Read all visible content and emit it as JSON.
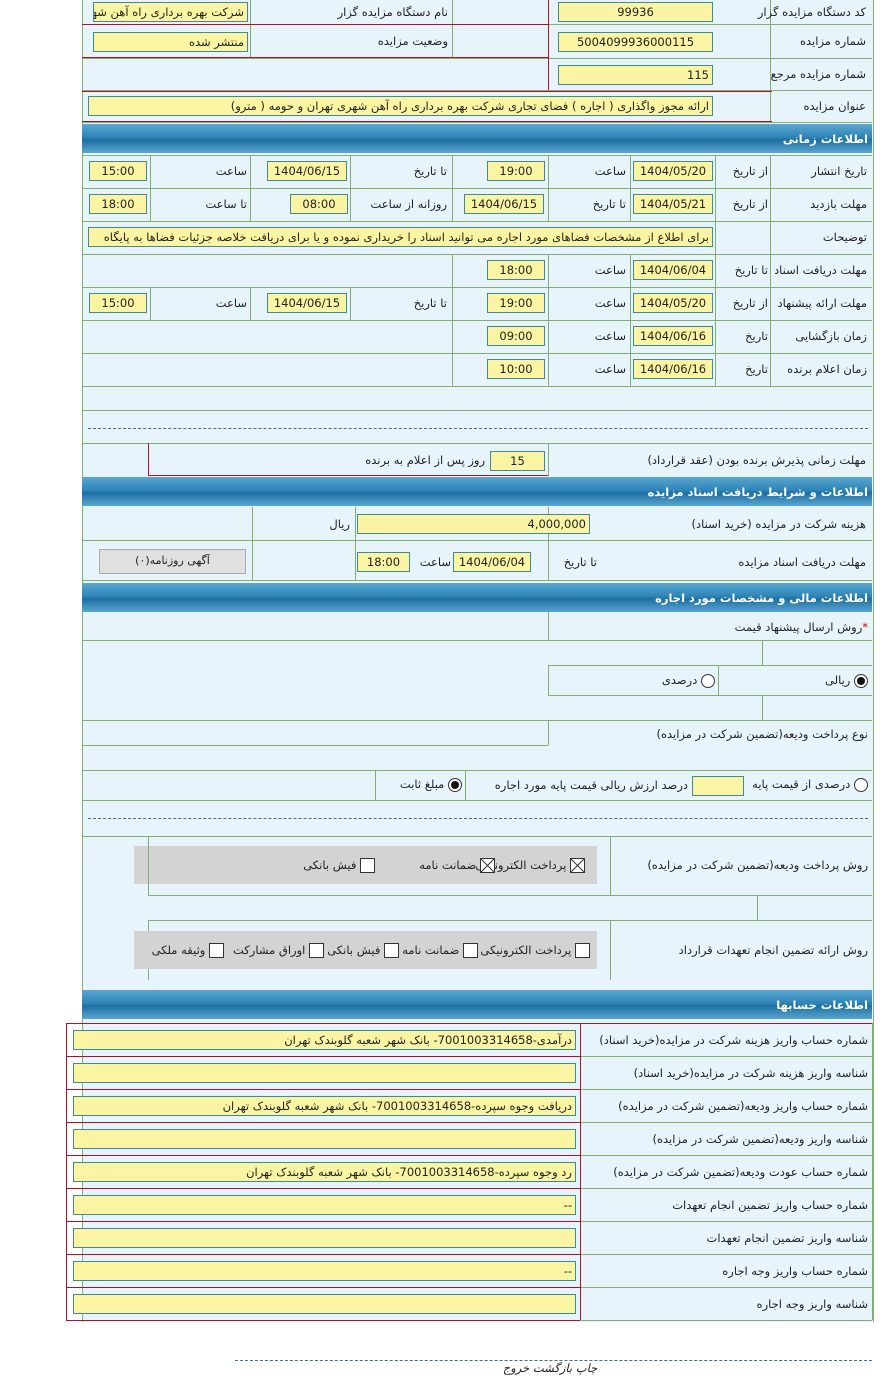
{
  "top": {
    "org_code_label": "کد دستگاه مزایده گزار",
    "org_code": "99936",
    "org_name_label": "نام دستگاه مزایده گزار",
    "org_name": "شرکت بهره برداری راه آهن شهری تهران و حومه",
    "auction_number_label": "شماره مزایده",
    "auction_number": "5004099936000115",
    "status_label": "وضعیت مزایده",
    "status": "منتشر شده",
    "ref_number_label": "شماره مزایده مرجع",
    "ref_number": "115",
    "title_label": "عنوان مزایده",
    "title": "ارائه مجوز واگذاری ( اجاره ) فضای تجاری شرکت بهره برداری راه آهن شهری تهران و حومه ( مترو)"
  },
  "time": {
    "header": "اطلاعات زمانی",
    "publish": {
      "label": "تاریخ انتشار",
      "from_label": "از تاریخ",
      "from_date": "1404/05/20",
      "time1_label": "ساعت",
      "time1": "19:00",
      "to_label": "تا تاریخ",
      "to_date": "1404/06/15",
      "time2_label": "ساعت",
      "time2": "15:00"
    },
    "visit": {
      "label": "مهلت بازدید",
      "from_label": "از تاریخ",
      "from_date": "1404/05/21",
      "to_label": "تا تاریخ",
      "to_date": "1404/06/15",
      "daily_label": "روزانه از ساعت",
      "daily_from": "08:00",
      "until_label": "تا ساعت",
      "daily_to": "18:00"
    },
    "description": {
      "label": "توضیحات",
      "value": "برای اطلاع از مشخصات فضاهای مورد اجاره می توانید اسناد را خریداری نموده و یا برای دریافت خلاصه جزئیات فضاها به پایگاه"
    },
    "docs": {
      "label": "مهلت دریافت اسناد",
      "to_label": "تا تاریخ",
      "to_date": "1404/06/04",
      "time_label": "ساعت",
      "time": "18:00"
    },
    "offer": {
      "label": "مهلت ارائه پیشنهاد",
      "from_label": "از تاریخ",
      "from_date": "1404/05/20",
      "time1_label": "ساعت",
      "time1": "19:00",
      "to_label": "تا تاریخ",
      "to_date": "1404/06/15",
      "time2_label": "ساعت",
      "time2": "15:00"
    },
    "opening": {
      "label": "زمان بازگشایی",
      "date_label": "تاریخ",
      "date": "1404/06/16",
      "time_label": "ساعت",
      "time": "09:00"
    },
    "winner": {
      "label": "زمان اعلام برنده",
      "date_label": "تاریخ",
      "date": "1404/06/16",
      "time_label": "ساعت",
      "time": "10:00"
    },
    "acceptance": {
      "label": "مهلت زمانی پذیرش برنده بودن (عقد قرارداد)",
      "days": "15",
      "suffix": "روز پس از اعلام به برنده"
    }
  },
  "docs_section": {
    "header": "اطلاعات و شرایط دریافت اسناد مزایده",
    "fee_label": "هزینه شرکت در مزایده (خرید اسناد)",
    "fee": "4,000,000",
    "currency": "ریال",
    "deadline_label": "مهلت دریافت اسناد مزایده",
    "to_label": "تا تاریخ",
    "to_date": "1404/06/04",
    "time_label": "ساعت",
    "time": "18:00",
    "newspaper_button": "آگهی روزنامه(۰)"
  },
  "finance": {
    "header": "اطلاعات مالی و مشخصات مورد اجاره",
    "required_mark": "*",
    "price_method_label": "روش ارسال پیشنهاد قیمت",
    "price_options": [
      {
        "label": "ریالی",
        "checked": true
      },
      {
        "label": "درصدی",
        "checked": false
      }
    ],
    "deposit_type_label": "نوع پرداخت ودیعه(تضمین شرکت در مزایده)",
    "percent_option": "درصدی از قیمت پایه",
    "percent_value": "",
    "percent_suffix": "درصد ارزش ریالی قیمت پایه مورد اجاره",
    "fixed_option": "مبلغ ثابت",
    "fixed_checked": true,
    "deposit_method_label": "روش پرداخت ودیعه(تضمین شرکت در مزایده)",
    "deposit_methods": [
      {
        "label": "پرداخت الکترونیکی",
        "checked": true
      },
      {
        "label": "ضمانت نامه",
        "checked": true
      },
      {
        "label": "فیش بانکی",
        "checked": false
      }
    ],
    "guarantee_label": "روش ارائه تضمین انجام تعهدات قرارداد",
    "guarantee_methods": [
      {
        "label": "پرداخت الکترونیکی",
        "checked": false
      },
      {
        "label": "ضمانت نامه",
        "checked": false
      },
      {
        "label": "فیش بانکی",
        "checked": false
      },
      {
        "label": "اوراق مشارکت",
        "checked": false
      },
      {
        "label": "وثیقه ملکی",
        "checked": false
      }
    ]
  },
  "accounts": {
    "header": "اطلاعات حسابها",
    "rows": [
      {
        "label": "شماره حساب واریز هزینه شرکت در مزایده(خرید اسناد)",
        "value": "درآمدی-7001003314658- بانک شهر شعبه گلوبندک تهران"
      },
      {
        "label": "شناسه واریز هزینه شرکت در مزایده(خرید اسناد)",
        "value": ""
      },
      {
        "label": "شماره حساب واریز ودیعه(تضمین شرکت در مزایده)",
        "value": "دریافت وجوه سپرده-7001003314658- بانک شهر شعبه گلوبندک تهران"
      },
      {
        "label": "شناسه واریز ودیعه(تضمین شرکت در مزایده)",
        "value": ""
      },
      {
        "label": "شماره حساب عودت ودیعه(تضمین شرکت در مزایده)",
        "value": "رد وجوه سپرده-7001003314658- بانک شهر شعبه گلوبندک تهران"
      },
      {
        "label": "شماره حساب واریز تضمین انجام تعهدات",
        "value": "--"
      },
      {
        "label": "شناسه واریز تضمین انجام تعهدات",
        "value": ""
      },
      {
        "label": "شماره حساب واریز وجه اجاره",
        "value": "--"
      },
      {
        "label": "شناسه واریز وجه اجاره",
        "value": ""
      }
    ]
  },
  "footer": {
    "links": "چاپ بازگشت خروج"
  },
  "colors": {
    "header_blue": "#2f85b8",
    "input_yellow": "#fbf5a3",
    "background": "#e8f4fc",
    "border_red": "#b0102a"
  }
}
